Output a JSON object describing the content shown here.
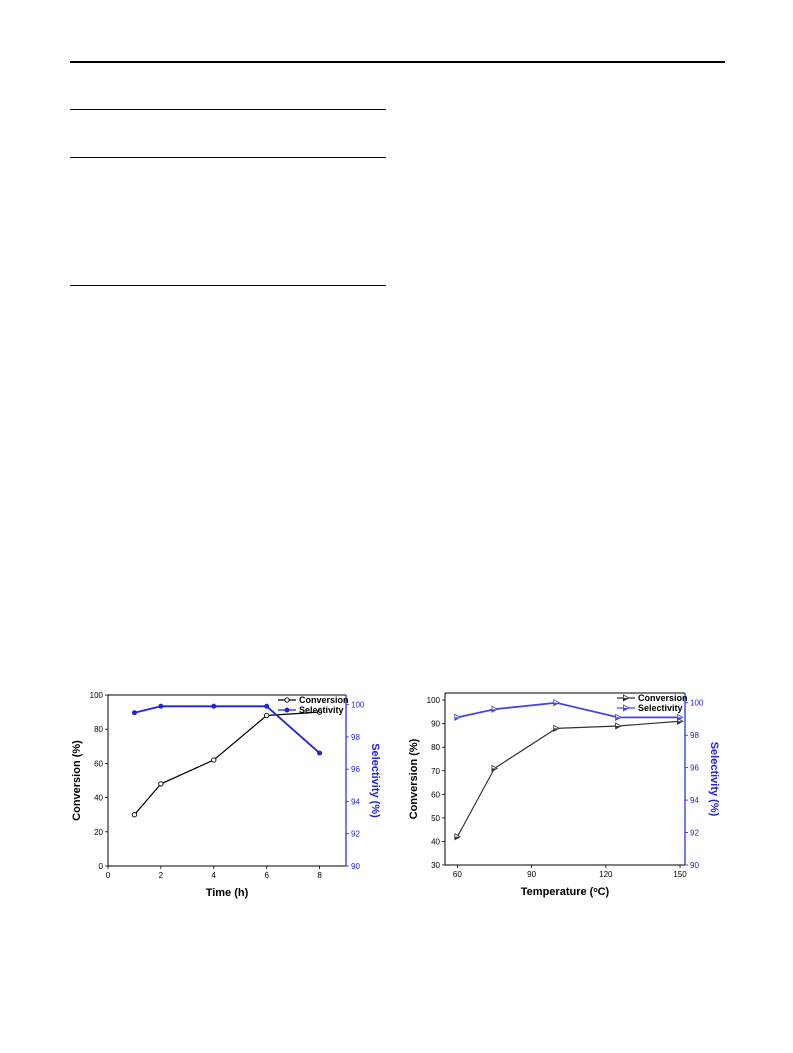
{
  "chart_data": [
    {
      "type": "line",
      "x": [
        1,
        2,
        4,
        6,
        8
      ],
      "xlabel": "Time (h)",
      "xlim": [
        0,
        9
      ],
      "xticks": [
        0,
        2,
        4,
        6,
        8
      ],
      "ylabel": "Conversion (%)",
      "ylim": [
        0,
        100
      ],
      "yticks": [
        0,
        20,
        40,
        60,
        80,
        100
      ],
      "y2label": "Selectivity (%)",
      "y2lim": [
        90,
        100.6
      ],
      "y2ticks": [
        90,
        92,
        94,
        96,
        98,
        100
      ],
      "legend_position": "top-right",
      "grid": false,
      "series": [
        {
          "name": "Conversion",
          "axis": "left",
          "color": "#000000",
          "marker": "open-circle",
          "values": [
            30,
            48,
            62,
            88,
            90
          ]
        },
        {
          "name": "Selectivity",
          "axis": "right",
          "color": "#2222dd",
          "marker": "filled-circle",
          "values": [
            99.5,
            99.9,
            99.9,
            99.9,
            97.0
          ]
        }
      ]
    },
    {
      "type": "line",
      "x": [
        60,
        75,
        100,
        125,
        150
      ],
      "xlabel": "Temperature (",
      "xlabel_sup": "o",
      "xlabel_end": "C)",
      "xlim": [
        55,
        152
      ],
      "xticks": [
        60,
        90,
        120,
        150
      ],
      "ylabel": "Conversion (%)",
      "ylim": [
        30,
        103
      ],
      "yticks": [
        30,
        40,
        50,
        60,
        70,
        80,
        90,
        100
      ],
      "y2label": "Selectivity (%)",
      "y2lim": [
        90,
        100.6
      ],
      "y2ticks": [
        90,
        92,
        94,
        96,
        98,
        100
      ],
      "legend_position": "top-right",
      "grid": false,
      "series": [
        {
          "name": "Conversion",
          "axis": "left",
          "color": "#333333",
          "marker": "half-triangle",
          "values": [
            42,
            71,
            88,
            89,
            91
          ]
        },
        {
          "name": "Selectivity",
          "axis": "right",
          "color": "#4444ee",
          "marker": "half-triangle",
          "values": [
            99.1,
            99.6,
            100.0,
            99.1,
            99.1
          ]
        }
      ]
    }
  ]
}
